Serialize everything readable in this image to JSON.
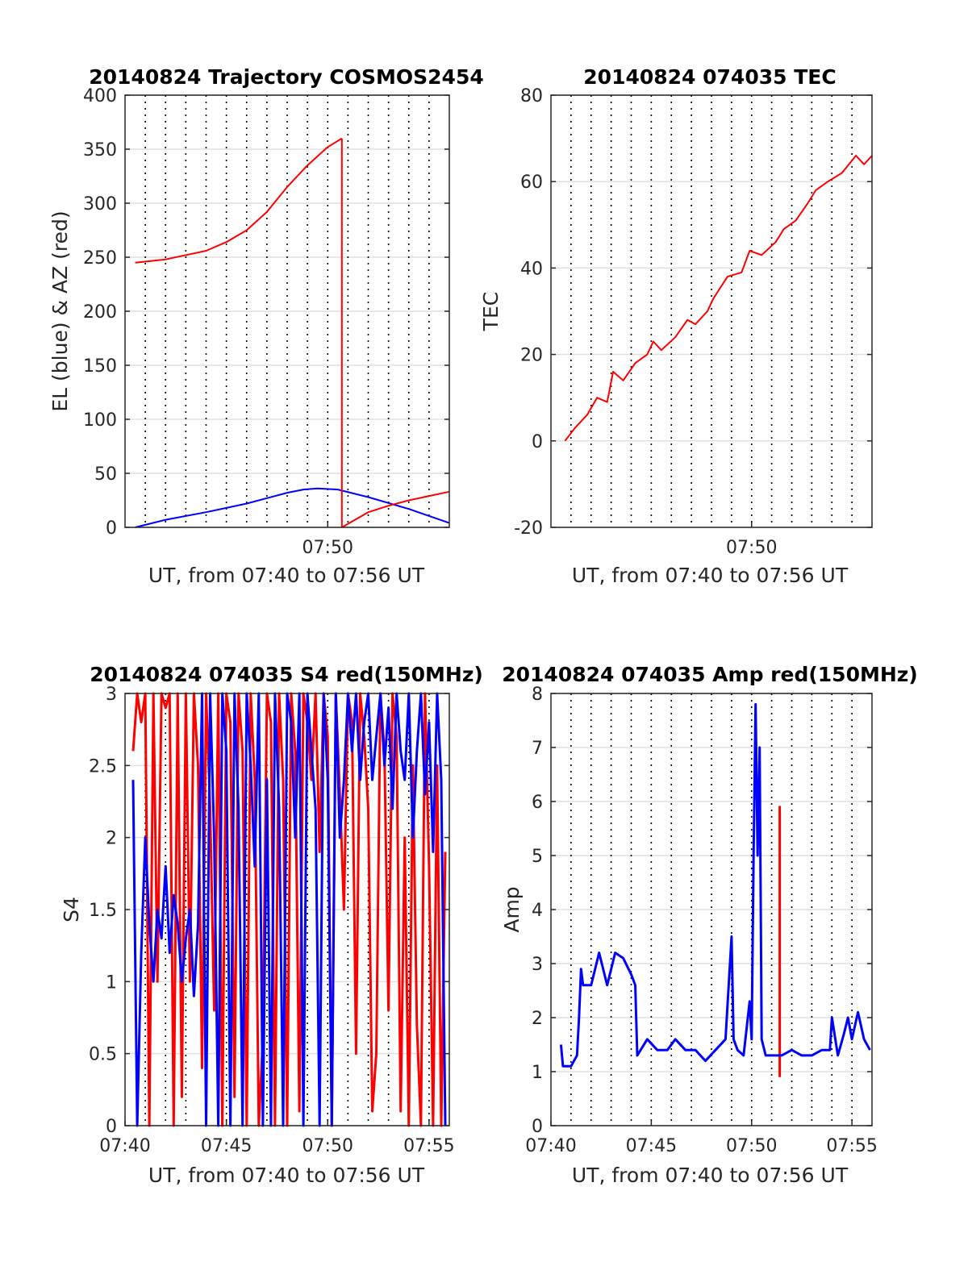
{
  "chart_data": [
    {
      "type": "line",
      "title": "20140824 Trajectory COSMOS2454",
      "xlabel": "UT, from 07:40 to 07:56 UT",
      "ylabel": "EL (blue) & AZ (red)",
      "xlim": [
        "07:40",
        "07:56"
      ],
      "ylim": [
        0,
        400
      ],
      "yticks": [
        "0",
        "50",
        "100",
        "150",
        "200",
        "250",
        "300",
        "350",
        "400"
      ],
      "xticks": [
        {
          "t": "07:50",
          "label": "07:50"
        }
      ],
      "grid": true,
      "series": [
        {
          "name": "EL (blue)",
          "color": "#0000ff",
          "x": [
            "07:40.5",
            "07:42",
            "07:44",
            "07:46",
            "07:47",
            "07:48",
            "07:48.8",
            "07:49.5",
            "07:50.5",
            "07:52",
            "07:54",
            "07:56"
          ],
          "y": [
            0,
            7,
            14,
            22,
            27,
            32,
            35,
            36,
            35,
            28,
            17,
            4
          ]
        },
        {
          "name": "AZ (red)",
          "color": "#ff0000",
          "segments": [
            {
              "x": [
                "07:40.5",
                "07:42",
                "07:44",
                "07:45",
                "07:46",
                "07:47",
                "07:48",
                "07:49",
                "07:50",
                "07:50.7"
              ],
              "y": [
                245,
                248,
                256,
                264,
                275,
                292,
                315,
                335,
                352,
                360
              ]
            },
            {
              "x": [
                "07:50.7",
                "07:50.7",
                "07:52",
                "07:53",
                "07:54",
                "07:55",
                "07:56"
              ],
              "y": [
                360,
                0,
                14,
                20,
                25,
                29,
                33
              ]
            }
          ]
        }
      ]
    },
    {
      "type": "line",
      "title": "20140824 074035 TEC",
      "xlabel": "UT, from 07:40 to 07:56 UT",
      "ylabel": "TEC",
      "xlim": [
        "07:40",
        "07:56"
      ],
      "ylim": [
        -20,
        80
      ],
      "yticks": [
        "-20",
        "0",
        "20",
        "40",
        "60",
        "80"
      ],
      "xticks": [
        {
          "t": "07:50",
          "label": "07:50"
        }
      ],
      "grid": true,
      "series": [
        {
          "name": "TEC",
          "color": "#ff0000",
          "x": [
            "07:40.7",
            "07:41.2",
            "07:41.8",
            "07:42.3",
            "07:42.8",
            "07:43.1",
            "07:43.6",
            "07:44.2",
            "07:44.8",
            "07:45.1",
            "07:45.5",
            "07:46.2",
            "07:46.8",
            "07:47.2",
            "07:47.8",
            "07:48.1",
            "07:48.8",
            "07:49.5",
            "07:49.9",
            "07:50.5",
            "07:51.2",
            "07:51.6",
            "07:52.2",
            "07:52.8",
            "07:53.2",
            "07:53.8",
            "07:54.5",
            "07:55.2",
            "07:55.6",
            "07:56"
          ],
          "y": [
            0,
            3,
            6,
            10,
            9,
            16,
            14,
            18,
            20,
            23,
            21,
            24,
            28,
            27,
            30,
            33,
            38,
            39,
            44,
            43,
            46,
            49,
            51,
            55,
            58,
            60,
            62,
            66,
            64,
            66
          ]
        }
      ]
    },
    {
      "type": "line",
      "title": "20140824 074035 S4 red(150MHz)",
      "xlabel": "UT, from 07:40 to 07:56 UT",
      "ylabel": "S4",
      "xlim": [
        "07:40",
        "07:56"
      ],
      "ylim": [
        0,
        3
      ],
      "yticks": [
        "0",
        "0.5",
        "1",
        "1.5",
        "2",
        "2.5",
        "3"
      ],
      "xticks": [
        {
          "t": "07:40",
          "label": "07:40"
        },
        {
          "t": "07:45",
          "label": "07:45"
        },
        {
          "t": "07:50",
          "label": "07:50"
        },
        {
          "t": "07:55",
          "label": "07:55"
        }
      ],
      "grid": true,
      "series": [
        {
          "name": "S4 red",
          "color": "#ff0000",
          "x": [
            "07:40.4",
            "07:40.6",
            "07:40.8",
            "07:41.0",
            "07:41.2",
            "07:41.4",
            "07:41.6",
            "07:41.8",
            "07:42.0",
            "07:42.2",
            "07:42.4",
            "07:42.6",
            "07:42.8",
            "07:43.0",
            "07:43.2",
            "07:43.4",
            "07:43.6",
            "07:43.8",
            "07:44.0",
            "07:44.2",
            "07:44.4",
            "07:44.6",
            "07:44.8",
            "07:45.0",
            "07:45.2",
            "07:45.4",
            "07:45.6",
            "07:45.8",
            "07:46.0",
            "07:46.2",
            "07:46.4",
            "07:46.6",
            "07:46.8",
            "07:47.0",
            "07:47.2",
            "07:47.4",
            "07:47.6",
            "07:47.8",
            "07:48.0",
            "07:48.2",
            "07:48.4",
            "07:48.6",
            "07:48.8",
            "07:49.0",
            "07:49.2",
            "07:49.4",
            "07:49.6",
            "07:49.8",
            "07:50.0",
            "07:50.2",
            "07:50.4",
            "07:50.6",
            "07:50.8",
            "07:51.0",
            "07:51.2",
            "07:51.4",
            "07:51.6",
            "07:51.8",
            "07:52.0",
            "07:52.2",
            "07:52.4",
            "07:52.6",
            "07:52.8",
            "07:53.0",
            "07:53.2",
            "07:53.4",
            "07:53.6",
            "07:53.8",
            "07:54.0",
            "07:54.2",
            "07:54.4",
            "07:54.6",
            "07:54.8",
            "07:55.0",
            "07:55.2",
            "07:55.4",
            "07:55.6",
            "07:55.8"
          ],
          "y": [
            2.6,
            3,
            2.8,
            3,
            0,
            3,
            1.0,
            3,
            2.9,
            3,
            0,
            3,
            0.2,
            3,
            1.0,
            3,
            2.5,
            0.4,
            3,
            2.2,
            0.8,
            3,
            0,
            3,
            2.8,
            0.2,
            3,
            2.6,
            0,
            3,
            2.4,
            0,
            0.6,
            3,
            2.8,
            0,
            3,
            2.4,
            0,
            3,
            2.6,
            0.1,
            3,
            2.8,
            2.4,
            3,
            1.9,
            3,
            2.7,
            0,
            3,
            2.3,
            1.5,
            3,
            2.8,
            0.5,
            3,
            2.7,
            2.2,
            0.1,
            0.5,
            3,
            2.6,
            0.8,
            3,
            2.7,
            0.1,
            2.0,
            0,
            2.5,
            0.7,
            0,
            3,
            1.8,
            0,
            2.5,
            0,
            1.9
          ]
        },
        {
          "name": "S4 blue",
          "color": "#0000ff",
          "x": [
            "07:40.4",
            "07:40.6",
            "07:40.8",
            "07:41.0",
            "07:41.2",
            "07:41.4",
            "07:41.6",
            "07:41.8",
            "07:42.0",
            "07:42.2",
            "07:42.4",
            "07:42.6",
            "07:42.8",
            "07:43.0",
            "07:43.2",
            "07:43.4",
            "07:43.6",
            "07:43.8",
            "07:44.0",
            "07:44.2",
            "07:44.4",
            "07:44.6",
            "07:44.8",
            "07:45.0",
            "07:45.2",
            "07:45.4",
            "07:45.6",
            "07:45.8",
            "07:46.0",
            "07:46.2",
            "07:46.4",
            "07:46.6",
            "07:46.8",
            "07:47.0",
            "07:47.2",
            "07:47.4",
            "07:47.6",
            "07:47.8",
            "07:48.0",
            "07:48.2",
            "07:48.4",
            "07:48.6",
            "07:48.8",
            "07:49.0",
            "07:49.2",
            "07:49.4",
            "07:49.6",
            "07:49.8",
            "07:50.0",
            "07:50.2",
            "07:50.4",
            "07:50.6",
            "07:50.8",
            "07:51.0",
            "07:51.2",
            "07:51.4",
            "07:51.6",
            "07:51.8",
            "07:52.0",
            "07:52.2",
            "07:52.4",
            "07:52.6",
            "07:52.8",
            "07:53.0",
            "07:53.2",
            "07:53.4",
            "07:53.6",
            "07:53.8",
            "07:54.0",
            "07:54.2",
            "07:54.4",
            "07:54.6",
            "07:54.8",
            "07:55.0",
            "07:55.2",
            "07:55.4",
            "07:55.6",
            "07:55.8"
          ],
          "y": [
            2.4,
            0,
            1.2,
            2.0,
            1.4,
            1.0,
            1.5,
            1.3,
            1.8,
            1.2,
            1.6,
            1.4,
            1.0,
            1.3,
            1.5,
            0.9,
            1.4,
            3,
            0,
            3,
            2.0,
            0,
            3,
            2.6,
            0,
            3,
            2.2,
            0,
            3,
            2.5,
            1.8,
            3,
            0,
            2.4,
            0,
            3,
            2.2,
            0,
            3,
            2.8,
            2.0,
            3,
            0,
            3,
            2.6,
            2.2,
            0,
            3,
            2.4,
            0,
            3,
            2.0,
            2.4,
            3,
            2.6,
            3,
            2.4,
            2.8,
            3,
            2.4,
            2.7,
            3,
            2.5,
            2.9,
            2.2,
            3,
            2.6,
            2.4,
            3,
            2.0,
            2.6,
            3,
            2.3,
            2.8,
            1.9,
            3,
            2.4,
            0
          ]
        }
      ]
    },
    {
      "type": "line",
      "title": "20140824 074035 Amp red(150MHz)",
      "xlabel": "UT, from 07:40 to 07:56 UT",
      "ylabel": "Amp",
      "xlim": [
        "07:40",
        "07:56"
      ],
      "ylim": [
        0,
        8
      ],
      "yticks": [
        "0",
        "1",
        "2",
        "3",
        "4",
        "5",
        "6",
        "7",
        "8"
      ],
      "xticks": [
        {
          "t": "07:40",
          "label": "07:40"
        },
        {
          "t": "07:45",
          "label": "07:45"
        },
        {
          "t": "07:50",
          "label": "07:50"
        },
        {
          "t": "07:55",
          "label": "07:55"
        }
      ],
      "grid": true,
      "series": [
        {
          "name": "Amp red",
          "color": "#ff0000",
          "x": [
            "07:51.4",
            "07:51.4",
            "07:51.4"
          ],
          "y": [
            0.9,
            5.9,
            0.9
          ]
        },
        {
          "name": "Amp blue",
          "color": "#0000ff",
          "x": [
            "07:40.5",
            "07:40.6",
            "07:41.0",
            "07:41.3",
            "07:41.4",
            "07:41.5",
            "07:41.6",
            "07:42.0",
            "07:42.4",
            "07:42.8",
            "07:43.2",
            "07:43.6",
            "07:44.0",
            "07:44.2",
            "07:44.3",
            "07:44.8",
            "07:45.3",
            "07:45.8",
            "07:46.2",
            "07:46.7",
            "07:47.2",
            "07:47.7",
            "07:48.2",
            "07:48.7",
            "07:49.0",
            "07:49.1",
            "07:49.3",
            "07:49.6",
            "07:49.9",
            "07:50.0",
            "07:50.1",
            "07:50.2",
            "07:50.3",
            "07:50.4",
            "07:50.5",
            "07:50.7",
            "07:51.0",
            "07:51.5",
            "07:52.0",
            "07:52.5",
            "07:53.0",
            "07:53.5",
            "07:53.9",
            "07:54.0",
            "07:54.3",
            "07:54.6",
            "07:54.8",
            "07:55.0",
            "07:55.3",
            "07:55.6",
            "07:55.9"
          ],
          "y": [
            1.5,
            1.1,
            1.1,
            1.3,
            2.0,
            2.9,
            2.6,
            2.6,
            3.2,
            2.6,
            3.2,
            3.1,
            2.8,
            2.6,
            1.3,
            1.6,
            1.4,
            1.4,
            1.6,
            1.4,
            1.4,
            1.2,
            1.4,
            1.6,
            3.5,
            1.6,
            1.4,
            1.3,
            2.3,
            1.6,
            5.0,
            7.8,
            5.0,
            7.0,
            1.6,
            1.3,
            1.3,
            1.3,
            1.4,
            1.3,
            1.3,
            1.4,
            1.4,
            2.0,
            1.3,
            1.7,
            2.0,
            1.6,
            2.1,
            1.6,
            1.4
          ]
        }
      ]
    }
  ]
}
